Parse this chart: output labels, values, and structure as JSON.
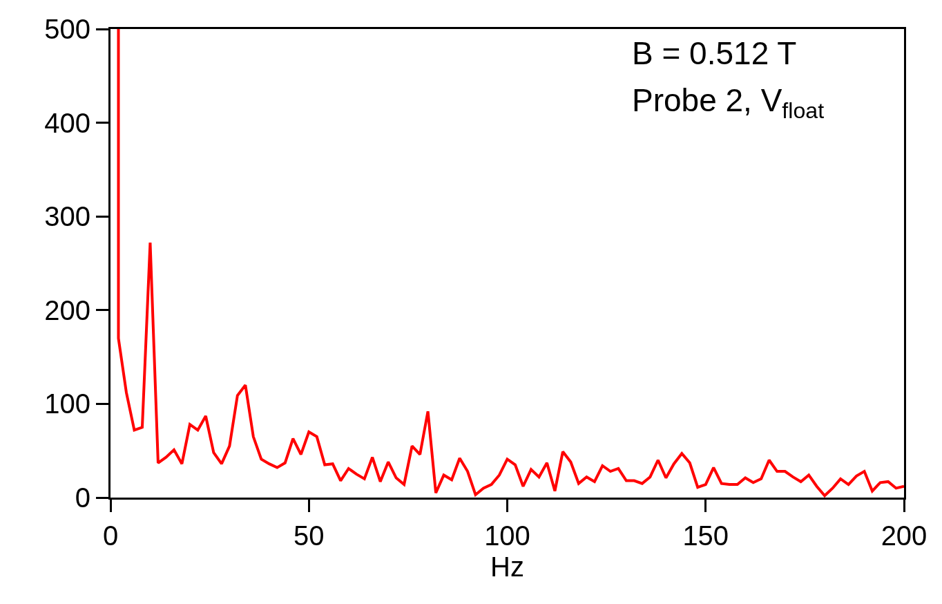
{
  "chart_data": {
    "type": "line",
    "xlabel": "Hz",
    "x": [
      2,
      2,
      4,
      6,
      8,
      10,
      12,
      14,
      16,
      18,
      20,
      22,
      24,
      26,
      28,
      30,
      32,
      34,
      36,
      38,
      40,
      42,
      44,
      46,
      48,
      50,
      52,
      54,
      56,
      58,
      60,
      62,
      64,
      66,
      68,
      70,
      72,
      74,
      76,
      78,
      80,
      82,
      84,
      86,
      88,
      90,
      92,
      94,
      96,
      98,
      100,
      102,
      104,
      106,
      108,
      110,
      112,
      114,
      116,
      118,
      120,
      122,
      124,
      126,
      128,
      130,
      132,
      134,
      136,
      138,
      140,
      142,
      144,
      146,
      148,
      150,
      152,
      154,
      156,
      158,
      160,
      162,
      164,
      166,
      168,
      170,
      172,
      174,
      176,
      178,
      180,
      182,
      184,
      186,
      188,
      190,
      192,
      194,
      196,
      198,
      200
    ],
    "series": [
      {
        "color": "#ff0000",
        "values": [
          500,
          170,
          112,
          72,
          75,
          272,
          37,
          43,
          51,
          36,
          78,
          72,
          87,
          48,
          36,
          55,
          109,
          120,
          65,
          41,
          36,
          32,
          37,
          63,
          46,
          70,
          65,
          35,
          36,
          18,
          31,
          25,
          20,
          43,
          17,
          38,
          21,
          14,
          55,
          46,
          92,
          5,
          24,
          19,
          42,
          28,
          3,
          10,
          14,
          24,
          41,
          35,
          12,
          30,
          22,
          37,
          7,
          49,
          38,
          15,
          22,
          17,
          34,
          28,
          31,
          18,
          18,
          15,
          22,
          40,
          21,
          36,
          47,
          37,
          11,
          14,
          32,
          15,
          14,
          14,
          21,
          16,
          20,
          40,
          28,
          28,
          22,
          17,
          24,
          12,
          2,
          10,
          20,
          14,
          23,
          28,
          7,
          16,
          17,
          10,
          12
        ]
      }
    ],
    "xlim": [
      0,
      200
    ],
    "xticks": [
      0,
      50,
      100,
      150,
      200
    ],
    "ylim": [
      0,
      500
    ],
    "yticks": [
      0,
      100,
      200,
      300,
      400,
      500
    ],
    "marker": "none",
    "line_style": "solid",
    "annotations": [
      "B = 0.512 T",
      "Probe 2, V$_{float}$"
    ]
  }
}
